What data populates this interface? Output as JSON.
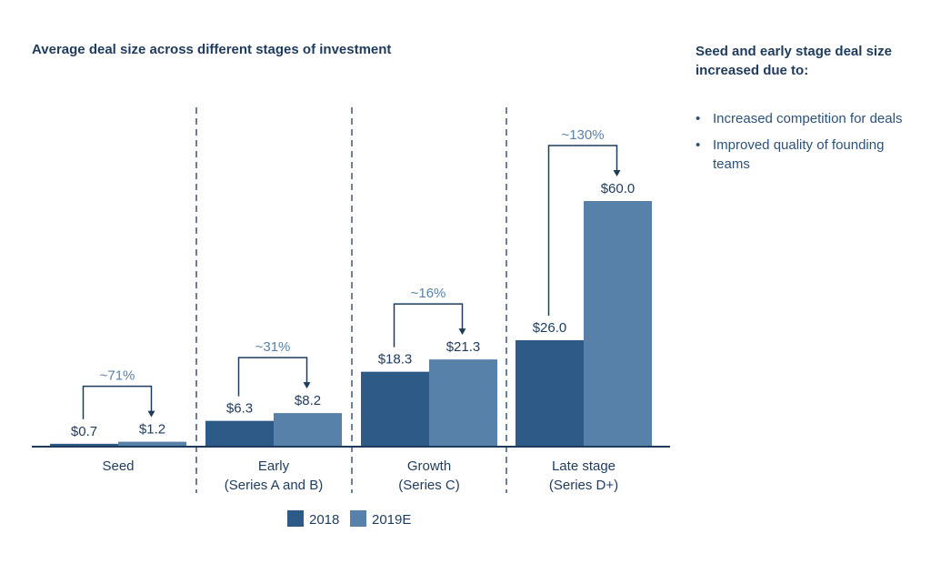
{
  "title": "Average deal size across different stages of investment",
  "sidebar": {
    "heading": "Seed and early stage deal size increased due to:",
    "bullets": [
      "Increased competition for deals",
      "Improved quality of founding teams"
    ]
  },
  "colors": {
    "series_2018": "#2e5a88",
    "series_2019E": "#5781a8",
    "text": "#1f3b5c",
    "axis": "#1f3b5c"
  },
  "chart_data": {
    "type": "bar",
    "title": "Average deal size across different stages of investment",
    "categories": [
      [
        "Seed"
      ],
      [
        "Early",
        "(Series A and B)"
      ],
      [
        "Growth",
        "(Series C)"
      ],
      [
        "Late stage",
        "(Series D+)"
      ]
    ],
    "series": [
      {
        "name": "2018",
        "values": [
          0.7,
          6.3,
          18.3,
          26.0
        ]
      },
      {
        "name": "2019E",
        "values": [
          1.2,
          8.2,
          21.3,
          60.0
        ]
      }
    ],
    "value_labels": [
      [
        "$0.7",
        "$6.3",
        "$18.3",
        "$26.0"
      ],
      [
        "$1.2",
        "$8.2",
        "$21.3",
        "$60.0"
      ]
    ],
    "growth_labels": [
      "~71%",
      "~31%",
      "~16%",
      "~130%"
    ],
    "ylim": [
      0,
      60
    ],
    "legend_position": "bottom-center",
    "grid": false
  }
}
